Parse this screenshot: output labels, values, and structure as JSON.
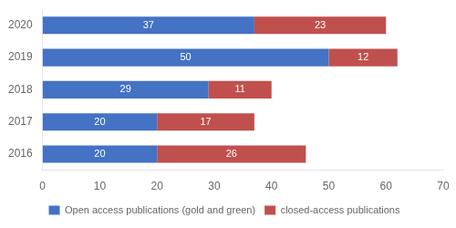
{
  "chart_data": {
    "type": "bar",
    "orientation": "horizontal",
    "stacked": true,
    "categories": [
      "2020",
      "2019",
      "2018",
      "2017",
      "2016"
    ],
    "series": [
      {
        "name": "Open access publications (gold and green)",
        "color": "#4472C4",
        "values": [
          37,
          50,
          29,
          20,
          20
        ]
      },
      {
        "name": "closed-access publications",
        "color": "#C0504D",
        "values": [
          23,
          12,
          11,
          17,
          26
        ]
      }
    ],
    "xlim": [
      0,
      70
    ],
    "xticks": [
      0,
      10,
      20,
      30,
      40,
      50,
      60,
      70
    ],
    "grid": false,
    "legend": "bottom",
    "data_labels": true
  }
}
